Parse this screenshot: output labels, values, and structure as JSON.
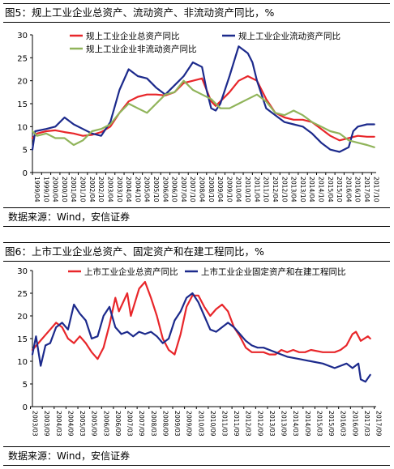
{
  "charts": [
    {
      "title": "图5：规上工业企业总资产、流动资产、非流动资产同比，%",
      "source": "数据来源：Wind，安信证券"
    },
    {
      "title": "图6：上市工业企业总资产、固定资产和在建工程同比，%",
      "source": "数据来源：Wind，安信证券"
    }
  ],
  "chart_data": [
    {
      "type": "line",
      "title": "图5：规上工业企业总资产、流动资产、非流动资产同比，%",
      "xlabel": "",
      "ylabel": "",
      "ylim": [
        0,
        30
      ],
      "yticks": [
        0,
        5,
        10,
        15,
        20,
        25,
        30
      ],
      "xlim": [
        1999.25,
        2018.0
      ],
      "x_ticks": [
        "1999/04",
        "1999/10",
        "2000/04",
        "2000/10",
        "2001/04",
        "2001/10",
        "2002/04",
        "2002/10",
        "2003/04",
        "2003/10",
        "2004/04",
        "2004/10",
        "2005/04",
        "2005/10",
        "2006/04",
        "2006/10",
        "2007/04",
        "2007/10",
        "2008/04",
        "2008/10",
        "2009/04",
        "2009/10",
        "2010/04",
        "2010/10",
        "2011/04",
        "2011/10",
        "2012/04",
        "2012/10",
        "2013/04",
        "2013/10",
        "2014/04",
        "2014/10",
        "2015/04",
        "2015/10",
        "2016/04",
        "2016/10",
        "2017/04",
        "2017/10"
      ],
      "grid": false,
      "legend_position": "top",
      "series": [
        {
          "name": "规上工业企业总资产同比",
          "color": "#e8262a",
          "points": [
            [
              1999.25,
              7.5
            ],
            [
              1999.5,
              8.5
            ],
            [
              2000.0,
              9.0
            ],
            [
              2000.5,
              9.2
            ],
            [
              2001.0,
              8.8
            ],
            [
              2001.5,
              8.5
            ],
            [
              2002.0,
              8.0
            ],
            [
              2002.5,
              8.2
            ],
            [
              2003.0,
              8.8
            ],
            [
              2003.5,
              10.0
            ],
            [
              2004.0,
              13.0
            ],
            [
              2004.5,
              15.5
            ],
            [
              2005.0,
              16.5
            ],
            [
              2005.5,
              17.0
            ],
            [
              2006.0,
              17.0
            ],
            [
              2006.5,
              16.8
            ],
            [
              2007.0,
              17.5
            ],
            [
              2007.5,
              19.5
            ],
            [
              2008.0,
              20.0
            ],
            [
              2008.5,
              20.5
            ],
            [
              2008.75,
              18.0
            ],
            [
              2009.0,
              15.5
            ],
            [
              2009.25,
              14.5
            ],
            [
              2009.5,
              15.5
            ],
            [
              2010.0,
              17.5
            ],
            [
              2010.5,
              20.0
            ],
            [
              2011.0,
              21.0
            ],
            [
              2011.5,
              20.0
            ],
            [
              2012.0,
              16.0
            ],
            [
              2012.5,
              13.0
            ],
            [
              2013.0,
              12.0
            ],
            [
              2013.5,
              11.5
            ],
            [
              2014.0,
              11.5
            ],
            [
              2014.5,
              11.0
            ],
            [
              2015.0,
              9.5
            ],
            [
              2015.5,
              8.0
            ],
            [
              2016.0,
              7.0
            ],
            [
              2016.5,
              7.5
            ],
            [
              2017.0,
              8.0
            ],
            [
              2017.5,
              7.8
            ],
            [
              2017.9,
              7.8
            ]
          ]
        },
        {
          "name": "规上工业企业流动资产同比",
          "color": "#1c2a8c",
          "points": [
            [
              1999.25,
              5.0
            ],
            [
              1999.4,
              9.0
            ],
            [
              2000.0,
              9.5
            ],
            [
              2000.5,
              10.0
            ],
            [
              2001.0,
              12.0
            ],
            [
              2001.5,
              10.5
            ],
            [
              2002.0,
              9.5
            ],
            [
              2002.5,
              8.5
            ],
            [
              2003.0,
              8.0
            ],
            [
              2003.5,
              11.0
            ],
            [
              2004.0,
              18.0
            ],
            [
              2004.5,
              22.5
            ],
            [
              2005.0,
              21.0
            ],
            [
              2005.5,
              20.5
            ],
            [
              2006.0,
              18.5
            ],
            [
              2006.5,
              17.0
            ],
            [
              2007.0,
              19.0
            ],
            [
              2007.5,
              21.0
            ],
            [
              2008.0,
              24.0
            ],
            [
              2008.5,
              23.0
            ],
            [
              2008.75,
              18.0
            ],
            [
              2009.0,
              14.0
            ],
            [
              2009.25,
              13.5
            ],
            [
              2009.5,
              15.0
            ],
            [
              2010.0,
              21.0
            ],
            [
              2010.5,
              27.5
            ],
            [
              2011.0,
              26.0
            ],
            [
              2011.25,
              24.0
            ],
            [
              2011.5,
              20.0
            ],
            [
              2012.0,
              14.0
            ],
            [
              2012.5,
              12.5
            ],
            [
              2013.0,
              11.0
            ],
            [
              2013.5,
              10.5
            ],
            [
              2014.0,
              10.0
            ],
            [
              2014.5,
              8.5
            ],
            [
              2015.0,
              6.5
            ],
            [
              2015.5,
              5.0
            ],
            [
              2016.0,
              4.5
            ],
            [
              2016.5,
              5.5
            ],
            [
              2016.75,
              9.0
            ],
            [
              2017.0,
              10.0
            ],
            [
              2017.5,
              10.5
            ],
            [
              2017.9,
              10.5
            ]
          ]
        },
        {
          "name": "规上工业企业非流动资产同比",
          "color": "#90b45a",
          "points": [
            [
              1999.25,
              9.0
            ],
            [
              1999.5,
              8.0
            ],
            [
              2000.0,
              8.5
            ],
            [
              2000.5,
              7.5
            ],
            [
              2001.0,
              7.5
            ],
            [
              2001.5,
              6.0
            ],
            [
              2002.0,
              7.0
            ],
            [
              2002.5,
              9.0
            ],
            [
              2003.0,
              9.5
            ],
            [
              2003.5,
              10.5
            ],
            [
              2004.0,
              13.0
            ],
            [
              2004.5,
              15.0
            ],
            [
              2005.0,
              14.0
            ],
            [
              2005.5,
              13.0
            ],
            [
              2006.0,
              15.0
            ],
            [
              2006.5,
              17.0
            ],
            [
              2007.0,
              17.5
            ],
            [
              2007.5,
              20.0
            ],
            [
              2008.0,
              18.0
            ],
            [
              2008.5,
              17.0
            ],
            [
              2009.0,
              16.0
            ],
            [
              2009.5,
              14.0
            ],
            [
              2010.0,
              14.0
            ],
            [
              2010.5,
              15.0
            ],
            [
              2011.0,
              16.0
            ],
            [
              2011.5,
              17.0
            ],
            [
              2012.0,
              15.5
            ],
            [
              2012.5,
              13.0
            ],
            [
              2013.0,
              12.5
            ],
            [
              2013.5,
              13.5
            ],
            [
              2014.0,
              12.5
            ],
            [
              2014.5,
              11.0
            ],
            [
              2015.0,
              10.0
            ],
            [
              2015.5,
              9.0
            ],
            [
              2016.0,
              8.5
            ],
            [
              2016.5,
              7.0
            ],
            [
              2017.0,
              6.5
            ],
            [
              2017.5,
              6.0
            ],
            [
              2017.9,
              5.5
            ]
          ]
        }
      ]
    },
    {
      "type": "line",
      "title": "图6：上市工业企业总资产、固定资产和在建工程同比，%",
      "xlabel": "",
      "ylabel": "",
      "ylim": [
        0,
        30
      ],
      "yticks": [
        0,
        5,
        10,
        15,
        20,
        25,
        30
      ],
      "xlim": [
        2003.25,
        2017.75
      ],
      "x_ticks": [
        "2003/03",
        "2003/09",
        "2004/03",
        "2004/09",
        "2005/03",
        "2005/09",
        "2006/03",
        "2006/09",
        "2007/03",
        "2007/09",
        "2008/03",
        "2008/09",
        "2009/03",
        "2009/09",
        "2010/03",
        "2010/09",
        "2011/03",
        "2011/09",
        "2012/03",
        "2012/09",
        "2013/03",
        "2013/09",
        "2014/03",
        "2014/09",
        "2015/03",
        "2015/09",
        "2016/03",
        "2016/09",
        "2017/03",
        "2017/09"
      ],
      "grid": false,
      "legend_position": "top",
      "series": [
        {
          "name": "上市工业企业总资产同比",
          "color": "#e8262a",
          "points": [
            [
              2003.25,
              12.5
            ],
            [
              2003.5,
              14.0
            ],
            [
              2003.75,
              15.5
            ],
            [
              2004.0,
              17.0
            ],
            [
              2004.25,
              18.5
            ],
            [
              2004.5,
              17.5
            ],
            [
              2004.75,
              15.0
            ],
            [
              2005.0,
              14.0
            ],
            [
              2005.25,
              15.5
            ],
            [
              2005.5,
              14.0
            ],
            [
              2005.75,
              12.0
            ],
            [
              2006.0,
              10.5
            ],
            [
              2006.25,
              13.0
            ],
            [
              2006.5,
              18.0
            ],
            [
              2006.75,
              24.0
            ],
            [
              2006.9,
              21.0
            ],
            [
              2007.25,
              25.0
            ],
            [
              2007.4,
              20.0
            ],
            [
              2007.75,
              26.0
            ],
            [
              2008.0,
              27.5
            ],
            [
              2008.25,
              24.0
            ],
            [
              2008.5,
              20.0
            ],
            [
              2008.75,
              15.0
            ],
            [
              2009.0,
              12.5
            ],
            [
              2009.25,
              11.5
            ],
            [
              2009.5,
              16.0
            ],
            [
              2009.75,
              22.0
            ],
            [
              2010.0,
              24.5
            ],
            [
              2010.25,
              24.5
            ],
            [
              2010.5,
              22.0
            ],
            [
              2010.75,
              20.0
            ],
            [
              2011.0,
              21.5
            ],
            [
              2011.25,
              22.5
            ],
            [
              2011.5,
              21.0
            ],
            [
              2011.75,
              17.5
            ],
            [
              2012.0,
              15.5
            ],
            [
              2012.25,
              13.0
            ],
            [
              2012.5,
              12.0
            ],
            [
              2012.75,
              12.0
            ],
            [
              2013.0,
              12.0
            ],
            [
              2013.25,
              11.5
            ],
            [
              2013.5,
              11.5
            ],
            [
              2013.75,
              12.5
            ],
            [
              2014.0,
              12.0
            ],
            [
              2014.25,
              12.5
            ],
            [
              2014.5,
              12.0
            ],
            [
              2014.75,
              12.0
            ],
            [
              2015.0,
              12.5
            ],
            [
              2015.5,
              12.0
            ],
            [
              2016.0,
              12.0
            ],
            [
              2016.25,
              12.5
            ],
            [
              2016.5,
              13.5
            ],
            [
              2016.75,
              16.0
            ],
            [
              2016.9,
              16.5
            ],
            [
              2017.1,
              14.5
            ],
            [
              2017.4,
              15.5
            ],
            [
              2017.5,
              15.0
            ]
          ]
        },
        {
          "name": "上市工业企业固定资产和在建工程同比",
          "color": "#1c2a8c",
          "points": [
            [
              2003.25,
              11.5
            ],
            [
              2003.4,
              15.5
            ],
            [
              2003.6,
              9.0
            ],
            [
              2003.8,
              13.5
            ],
            [
              2004.0,
              14.0
            ],
            [
              2004.25,
              17.5
            ],
            [
              2004.5,
              18.5
            ],
            [
              2004.75,
              17.0
            ],
            [
              2005.0,
              22.5
            ],
            [
              2005.25,
              20.5
            ],
            [
              2005.5,
              19.0
            ],
            [
              2005.75,
              15.0
            ],
            [
              2006.0,
              15.5
            ],
            [
              2006.25,
              20.0
            ],
            [
              2006.5,
              22.0
            ],
            [
              2006.75,
              17.5
            ],
            [
              2007.0,
              16.0
            ],
            [
              2007.25,
              16.5
            ],
            [
              2007.5,
              15.5
            ],
            [
              2007.75,
              16.5
            ],
            [
              2008.0,
              16.0
            ],
            [
              2008.25,
              16.5
            ],
            [
              2008.5,
              15.5
            ],
            [
              2008.75,
              14.0
            ],
            [
              2009.0,
              15.0
            ],
            [
              2009.25,
              19.0
            ],
            [
              2009.5,
              21.0
            ],
            [
              2009.75,
              24.0
            ],
            [
              2010.0,
              25.0
            ],
            [
              2010.25,
              23.0
            ],
            [
              2010.5,
              20.0
            ],
            [
              2010.75,
              17.0
            ],
            [
              2011.0,
              16.5
            ],
            [
              2011.25,
              17.5
            ],
            [
              2011.5,
              18.5
            ],
            [
              2011.75,
              17.5
            ],
            [
              2012.0,
              16.0
            ],
            [
              2012.25,
              14.5
            ],
            [
              2012.5,
              13.5
            ],
            [
              2012.75,
              13.0
            ],
            [
              2013.0,
              13.0
            ],
            [
              2013.25,
              12.5
            ],
            [
              2013.5,
              12.0
            ],
            [
              2013.75,
              11.5
            ],
            [
              2014.0,
              11.0
            ],
            [
              2014.5,
              10.5
            ],
            [
              2015.0,
              10.0
            ],
            [
              2015.5,
              9.5
            ],
            [
              2016.0,
              8.5
            ],
            [
              2016.25,
              9.0
            ],
            [
              2016.5,
              9.5
            ],
            [
              2016.75,
              8.5
            ],
            [
              2017.0,
              9.5
            ],
            [
              2017.1,
              6.0
            ],
            [
              2017.3,
              5.5
            ],
            [
              2017.5,
              7.0
            ]
          ]
        }
      ]
    }
  ]
}
